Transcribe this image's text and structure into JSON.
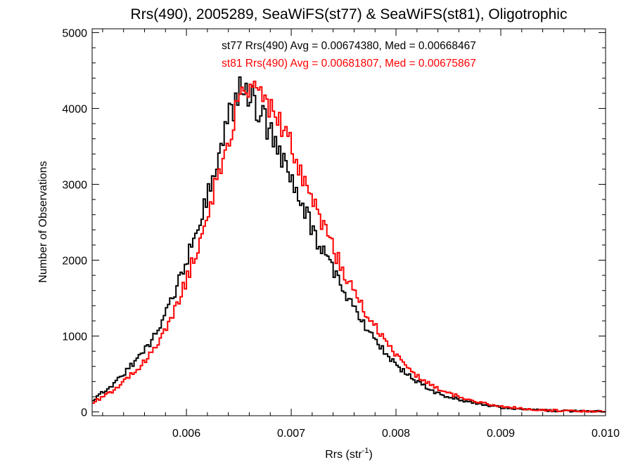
{
  "chart_data": {
    "type": "line",
    "title": "Rrs(490), 2005289, SeaWiFS(st77) & SeaWiFS(st81), Oligotrophic",
    "xlabel": {
      "base": "Rrs (str",
      "sup": "-1",
      "close": ")"
    },
    "ylabel": "Number of Observations",
    "xlim": [
      0.0051,
      0.01
    ],
    "ylim": [
      -50,
      5050
    ],
    "x_ticks": [
      0.006,
      0.007,
      0.008,
      0.009,
      0.01
    ],
    "x_tick_labels": [
      "0.006",
      "0.007",
      "0.008",
      "0.009",
      "0.010"
    ],
    "y_ticks": [
      0,
      1000,
      2000,
      3000,
      4000,
      5000
    ],
    "y_tick_labels": [
      "0",
      "1000",
      "2000",
      "3000",
      "4000",
      "5000"
    ],
    "grid": false,
    "legend": "top-center text annotations",
    "annotations": [
      {
        "text": "st77 Rrs(490) Avg = 0.00674380, Med = 0.00668467",
        "color": "#000000"
      },
      {
        "text": "st81 Rrs(490) Avg = 0.00681807, Med = 0.00675867",
        "color": "#ff0000"
      }
    ],
    "series": [
      {
        "color": "#000000",
        "style": "step",
        "x": [
          0.0051,
          0.0053,
          0.0055,
          0.0057,
          0.0059,
          0.0061,
          0.0062,
          0.0063,
          0.0064,
          0.0065,
          0.00655,
          0.0066,
          0.0067,
          0.0068,
          0.0069,
          0.007,
          0.0072,
          0.0074,
          0.0076,
          0.0078,
          0.008,
          0.0082,
          0.0084,
          0.0086,
          0.0088,
          0.009,
          0.0092,
          0.0094,
          0.0096,
          0.0098,
          0.01
        ],
        "values": [
          150,
          360,
          650,
          1000,
          1600,
          2420,
          2880,
          3400,
          3850,
          4210,
          4300,
          4180,
          3950,
          3700,
          3400,
          3150,
          2400,
          1850,
          1350,
          960,
          620,
          400,
          240,
          165,
          105,
          60,
          35,
          20,
          12,
          8,
          5
        ]
      },
      {
        "color": "#ff0000",
        "style": "step",
        "x": [
          0.0051,
          0.0053,
          0.0055,
          0.0057,
          0.0059,
          0.0061,
          0.0062,
          0.0063,
          0.0064,
          0.0065,
          0.0066,
          0.0067,
          0.0068,
          0.0069,
          0.007,
          0.0072,
          0.0074,
          0.0076,
          0.0078,
          0.008,
          0.0082,
          0.0084,
          0.0086,
          0.0088,
          0.009,
          0.0092,
          0.0094,
          0.0096,
          0.0098,
          0.01
        ],
        "values": [
          120,
          270,
          520,
          830,
          1360,
          2130,
          2600,
          3100,
          3600,
          4050,
          4230,
          4200,
          4050,
          3800,
          3500,
          2800,
          2150,
          1550,
          1120,
          750,
          480,
          300,
          200,
          125,
          75,
          45,
          26,
          15,
          9,
          5
        ]
      }
    ]
  }
}
